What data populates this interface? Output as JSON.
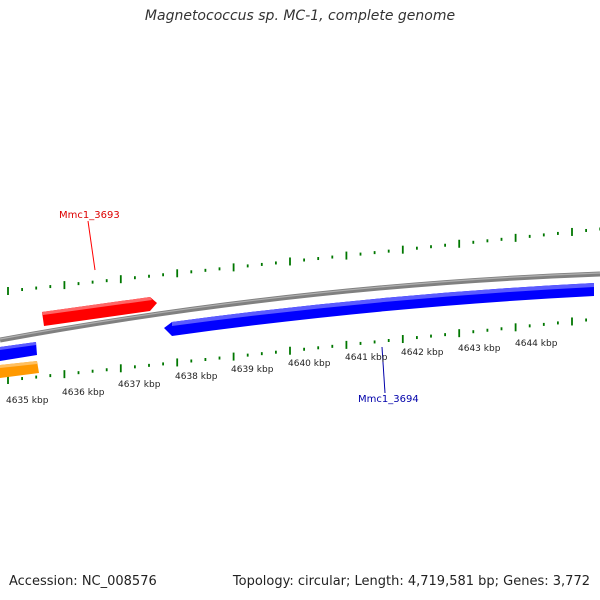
{
  "title": "Magnetococcus sp. MC-1, complete genome",
  "footer": {
    "accession": "Accession: NC_008576",
    "summary": "Topology: circular; Length: 4,719,581 bp; Genes: 3,772"
  },
  "scale": {
    "unit": "kbp",
    "labels": [
      "4635 kbp",
      "4636 kbp",
      "4637 kbp",
      "4638 kbp",
      "4639 kbp",
      "4640 kbp",
      "4641 kbp",
      "4642 kbp",
      "4643 kbp",
      "4644 kbp"
    ]
  },
  "genes": [
    {
      "name": "Mmc1_3693",
      "strand": "forward",
      "color": "#ff0000"
    },
    {
      "name": "Mmc1_3694",
      "strand": "reverse",
      "color": "#0000ff"
    }
  ],
  "unlabeled_features": [
    {
      "name": "reverse-gene-left",
      "strand": "reverse",
      "color": "#0000ff"
    },
    {
      "name": "orange-feature-left",
      "strand": "reverse",
      "color": "#ff9900"
    }
  ],
  "colors": {
    "backbone": "#808080",
    "ticks": "#007700",
    "forward_gene": "#ff0000",
    "reverse_gene": "#0000ff",
    "other_feature": "#ff9900"
  }
}
